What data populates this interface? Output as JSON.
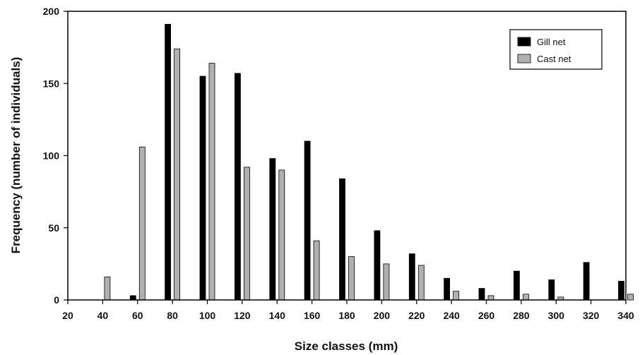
{
  "chart_data": {
    "type": "bar",
    "xlabel": "Size classes (mm)",
    "ylabel": "Frequency (number of individuals)",
    "xlim": [
      20,
      340
    ],
    "ylim": [
      0,
      200
    ],
    "x_ticks": [
      20,
      40,
      60,
      80,
      100,
      120,
      140,
      160,
      180,
      200,
      220,
      240,
      260,
      280,
      300,
      320,
      340
    ],
    "y_ticks": [
      0,
      50,
      100,
      150,
      200
    ],
    "categories": [
      40,
      60,
      80,
      100,
      120,
      140,
      160,
      180,
      200,
      220,
      240,
      260,
      280,
      300,
      320,
      340
    ],
    "series": [
      {
        "name": "Gill net",
        "color": "#000000",
        "values": [
          0,
          3,
          191,
          155,
          157,
          98,
          110,
          84,
          48,
          32,
          15,
          8,
          20,
          14,
          26,
          13
        ]
      },
      {
        "name": "Cast net",
        "color": "#b0b0b0",
        "values": [
          16,
          106,
          174,
          164,
          92,
          90,
          41,
          30,
          25,
          24,
          6,
          3,
          4,
          2,
          0,
          4
        ]
      }
    ],
    "grid": false,
    "legend_position": "top-right"
  }
}
